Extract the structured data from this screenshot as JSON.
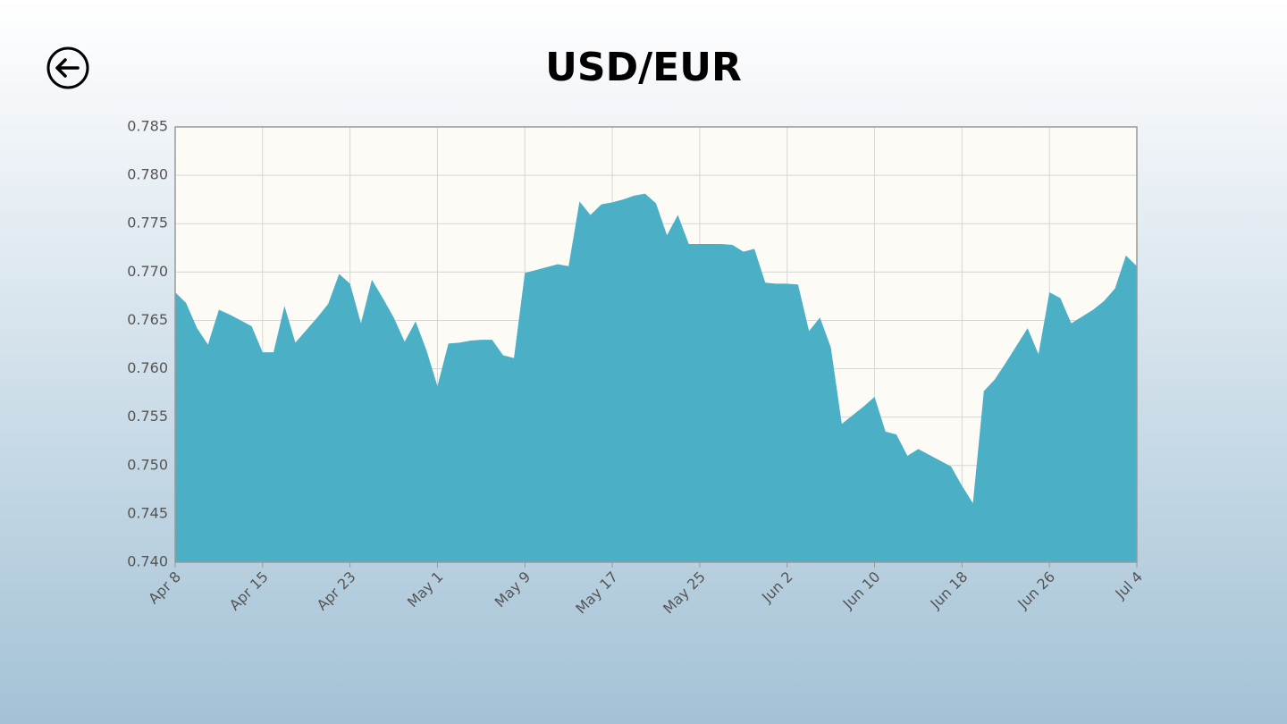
{
  "chart_data": {
    "type": "area",
    "title": "USD/EUR",
    "color": "#4bb0c6",
    "grid": true,
    "categories": [
      "Apr 8",
      null,
      null,
      null,
      null,
      null,
      null,
      null,
      "Apr 15",
      null,
      null,
      null,
      null,
      null,
      null,
      null,
      "Apr 23",
      null,
      null,
      null,
      null,
      null,
      null,
      null,
      "May 1",
      null,
      null,
      null,
      null,
      null,
      null,
      null,
      "May 9",
      null,
      null,
      null,
      null,
      null,
      null,
      null,
      "May 17",
      null,
      null,
      null,
      null,
      null,
      null,
      null,
      "May 25",
      null,
      null,
      null,
      null,
      null,
      null,
      null,
      "Jun 2",
      null,
      null,
      null,
      null,
      null,
      null,
      null,
      "Jun 10",
      null,
      null,
      null,
      null,
      null,
      null,
      null,
      "Jun 18",
      null,
      null,
      null,
      null,
      null,
      null,
      null,
      "Jun 26",
      null,
      null,
      null,
      null,
      null,
      null,
      null,
      "Jul 4"
    ],
    "values": [
      0.7679,
      0.7668,
      0.7642,
      0.7625,
      0.7661,
      0.7656,
      0.765,
      0.7644,
      0.7617,
      0.7617,
      0.7665,
      0.7627,
      0.764,
      0.7653,
      0.7667,
      0.7698,
      0.7688,
      0.7647,
      0.7692,
      0.7673,
      0.7653,
      0.7628,
      0.7649,
      0.7619,
      0.7582,
      0.7626,
      0.7627,
      0.7629,
      0.763,
      0.763,
      0.7614,
      0.7611,
      0.7699,
      0.7702,
      0.7705,
      0.7708,
      0.7706,
      0.7773,
      0.7759,
      0.777,
      0.7772,
      0.7775,
      0.7779,
      0.7781,
      0.7771,
      0.7738,
      0.7759,
      0.7729,
      0.7729,
      0.7729,
      0.7729,
      0.7728,
      0.7721,
      0.7724,
      0.7689,
      0.7688,
      0.7688,
      0.7687,
      0.7639,
      0.7653,
      0.7622,
      0.7543,
      0.7552,
      0.7561,
      0.7571,
      0.7535,
      0.7532,
      0.751,
      0.7517,
      0.7511,
      0.7505,
      0.7499,
      0.7479,
      0.7461,
      0.7577,
      0.7589,
      0.7606,
      0.7624,
      0.7642,
      0.7615,
      0.7679,
      0.7673,
      0.7647,
      0.7654,
      0.7661,
      0.767,
      0.7683,
      0.7717,
      0.7706
    ],
    "ylim": [
      0.74,
      0.785
    ],
    "yticks": [
      {
        "value": 0.74,
        "label": "0.740"
      },
      0.745,
      {
        "value": 0.75,
        "label": "0.750"
      },
      0.755,
      {
        "value": 0.76,
        "label": "0.760"
      },
      0.765,
      {
        "value": 0.77,
        "label": "0.770"
      },
      0.775,
      {
        "value": 0.78,
        "label": "0.780"
      },
      0.785
    ]
  }
}
